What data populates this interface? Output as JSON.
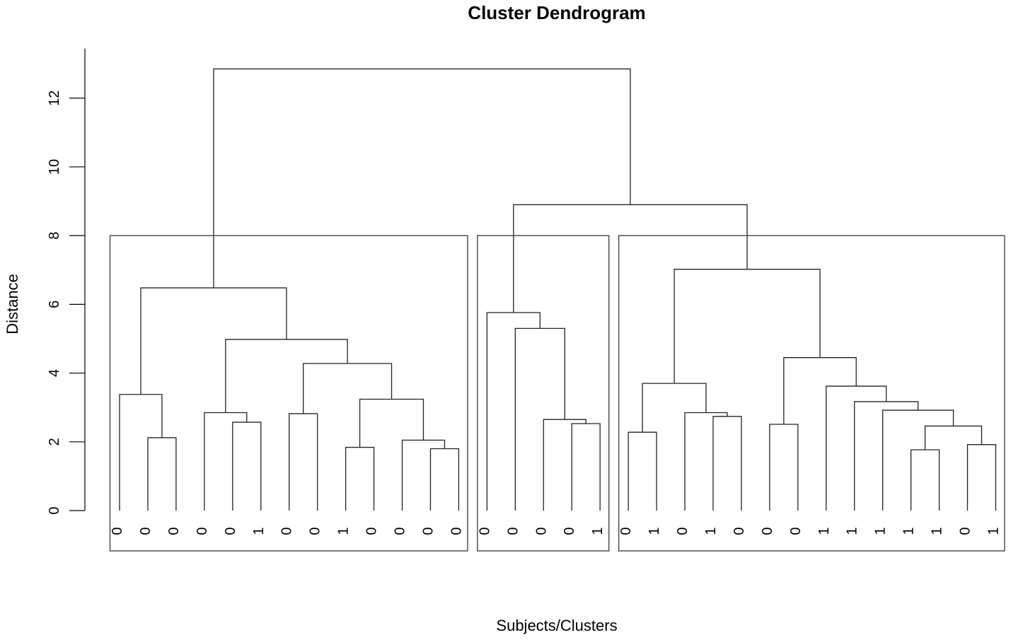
{
  "chart_data": {
    "type": "dendrogram",
    "title": "Cluster Dendrogram",
    "xlabel": "Subjects/Clusters",
    "ylabel": "Distance",
    "ylim": [
      0,
      13
    ],
    "yticks": [
      0,
      2,
      4,
      6,
      8,
      10,
      12
    ],
    "leaf_labels": [
      "0",
      "0",
      "0",
      "0",
      "0",
      "1",
      "0",
      "0",
      "1",
      "0",
      "0",
      "0",
      "0",
      "0",
      "0",
      "0",
      "0",
      "1",
      "0",
      "1",
      "0",
      "1",
      "0",
      "0",
      "0",
      "1",
      "1",
      "1",
      "1",
      "1",
      "0",
      "1"
    ],
    "merges": [
      {
        "left": 1,
        "right": 2,
        "height": 2.12
      },
      {
        "left": 0,
        "right": 1,
        "height": 3.38
      },
      {
        "left": 4,
        "right": 5,
        "height": 2.57
      },
      {
        "left": 3,
        "right": 4,
        "height": 2.85
      },
      {
        "left": 6,
        "right": 7,
        "height": 2.82
      },
      {
        "left": 8,
        "right": 9,
        "height": 1.84
      },
      {
        "left": 11,
        "right": 12,
        "height": 1.8
      },
      {
        "left": 10,
        "right": 11,
        "height": 2.05
      },
      {
        "left": 8,
        "right": 10,
        "height": 3.24
      },
      {
        "left": 6,
        "right": 8,
        "height": 4.28
      },
      {
        "left": 3,
        "right": 6,
        "height": 4.98
      },
      {
        "left": 0,
        "right": 3,
        "height": 6.48
      },
      {
        "left": 16,
        "right": 17,
        "height": 2.53
      },
      {
        "left": 15,
        "right": 16,
        "height": 2.65
      },
      {
        "left": 14,
        "right": 15,
        "height": 5.3
      },
      {
        "left": 13,
        "right": 14,
        "height": 5.76
      },
      {
        "left": 18,
        "right": 19,
        "height": 2.28
      },
      {
        "left": 21,
        "right": 22,
        "height": 2.74
      },
      {
        "left": 20,
        "right": 21,
        "height": 2.85
      },
      {
        "left": 18,
        "right": 20,
        "height": 3.7
      },
      {
        "left": 28,
        "right": 29,
        "height": 1.77
      },
      {
        "left": 30,
        "right": 31,
        "height": 1.92
      },
      {
        "left": 28,
        "right": 30,
        "height": 2.46
      },
      {
        "left": 27,
        "right": 28,
        "height": 2.92
      },
      {
        "left": 26,
        "right": 27,
        "height": 3.17
      },
      {
        "left": 25,
        "right": 26,
        "height": 3.62
      },
      {
        "left": 23,
        "right": 24,
        "height": 2.51
      },
      {
        "left": 23,
        "right": 25,
        "height": 4.45
      },
      {
        "left": 18,
        "right": 23,
        "height": 7.02
      },
      {
        "left": 13,
        "right": 18,
        "height": 8.9
      },
      {
        "left": 0,
        "right": 13,
        "height": 12.85
      }
    ],
    "cluster_boxes": [
      {
        "first_leaf": 0,
        "last_leaf": 12
      },
      {
        "first_leaf": 13,
        "last_leaf": 17
      },
      {
        "first_leaf": 18,
        "last_leaf": 31
      }
    ],
    "cluster_cut_height": 8
  }
}
